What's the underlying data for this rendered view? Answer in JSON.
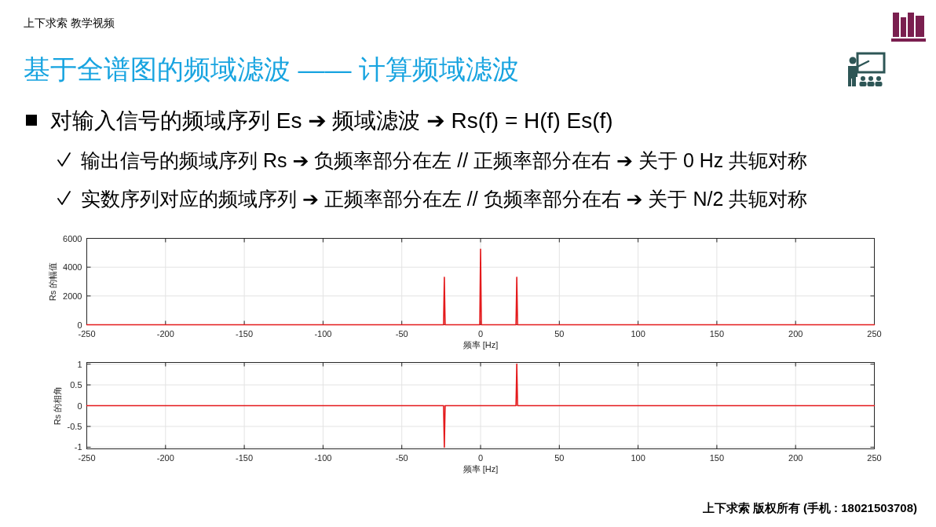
{
  "chart_data": [
    {
      "type": "line",
      "title": "基于全谱图的频域滤波 —— 计算频域滤波",
      "annotations": [
        "上下求索 教学视频",
        "对输入信号的频域序列 Es ➔ 频域滤波 ➔ Rs(f) = H(f) Es(f)",
        "输出信号的频域序列 Rs ➔ 负频率部分在左 // 正频率部分在右 ➔ 关于 0 Hz 共轭对称",
        "实数序列对应的频域序列 ➔ 正频率部分在左 // 负频率部分在右 ➔ 关于 N/2 共轭对称"
      ],
      "xlabel": "频率 [Hz]",
      "ylabel": "Rs 的幅值",
      "x": [
        -250,
        -23.5,
        -23,
        -22.5,
        -0.5,
        0,
        0.5,
        22.5,
        23,
        23.5,
        250
      ],
      "series": [
        {
          "color": "#e41a1c",
          "values": [
            0,
            0,
            3300,
            0,
            0,
            5250,
            0,
            0,
            3300,
            0,
            0
          ]
        }
      ],
      "xlim": [
        -250,
        250
      ],
      "xticks": [
        -250,
        -200,
        -150,
        -100,
        -50,
        0,
        50,
        100,
        150,
        200,
        250
      ],
      "ylim": [
        0,
        6000
      ],
      "yticks": [
        0,
        2000,
        4000,
        6000
      ],
      "grid": true
    },
    {
      "type": "line",
      "annotations": [
        "上下求索 版权所有 (手机 : 18021503708)"
      ],
      "xlabel": "频率 [Hz]",
      "ylabel": "Rs 的相角",
      "x": [
        -250,
        -23.5,
        -23,
        -22.5,
        22.5,
        23,
        23.5,
        250
      ],
      "series": [
        {
          "color": "#e41a1c",
          "values": [
            0,
            0,
            -1,
            0,
            0,
            1,
            0,
            0
          ]
        }
      ],
      "xlim": [
        -250,
        250
      ],
      "xticks": [
        -250,
        -200,
        -150,
        -100,
        -50,
        0,
        50,
        100,
        150,
        200,
        250
      ],
      "ylim": [
        -1.04,
        1.04
      ],
      "yticks": [
        -1,
        -0.5,
        0,
        0.5,
        1
      ],
      "grid": true
    }
  ]
}
